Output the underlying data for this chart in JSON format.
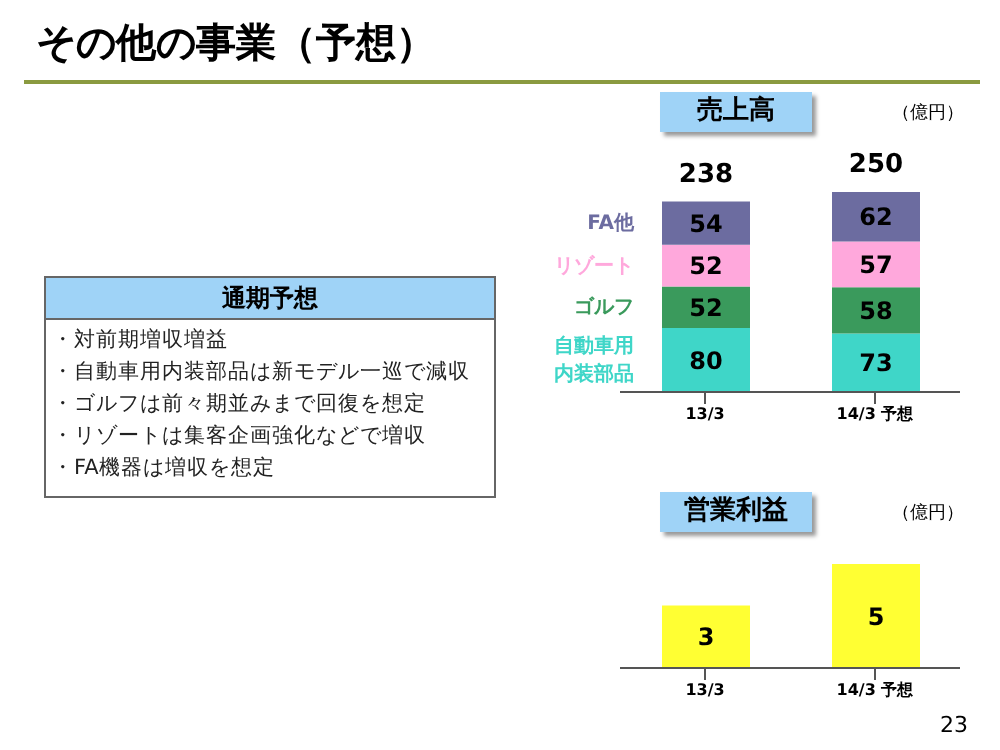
{
  "chart_data": [
    {
      "type": "other",
      "title": "その他の事業（予想）",
      "subtitle": "通期予想",
      "annotations": [
        "・対前期増収増益",
        "・自動車用内装部品は新モデル一巡で減収",
        "・ゴルフは前々期並みまで回復を想定",
        "・リゾートは集客企画強化などで増収",
        "・FA機器は増収を想定",
        "23"
      ]
    },
    {
      "type": "bar",
      "title": "売上高",
      "ylabel": "（億円）",
      "categories": [
        "13/3",
        "14/3 予想"
      ],
      "stacked": true,
      "data_labels": true,
      "totals": [
        "238",
        "250"
      ],
      "series": [
        {
          "name": "自動車用内装部品",
          "color": "#3fd6c8",
          "values": [
            80,
            73
          ]
        },
        {
          "name": "ゴルフ",
          "color": "#3a9a5c",
          "values": [
            52,
            58
          ]
        },
        {
          "name": "リゾート",
          "color": "#ffa8dc",
          "values": [
            52,
            57
          ]
        },
        {
          "name": "FA他",
          "color": "#6c6ca0",
          "values": [
            54,
            62
          ]
        }
      ]
    },
    {
      "type": "bar",
      "title": "営業利益",
      "ylabel": "（億円）",
      "categories": [
        "13/3",
        "14/3 予想"
      ],
      "values": [
        3,
        5
      ],
      "color": "#ffff33",
      "data_labels": true
    }
  ]
}
